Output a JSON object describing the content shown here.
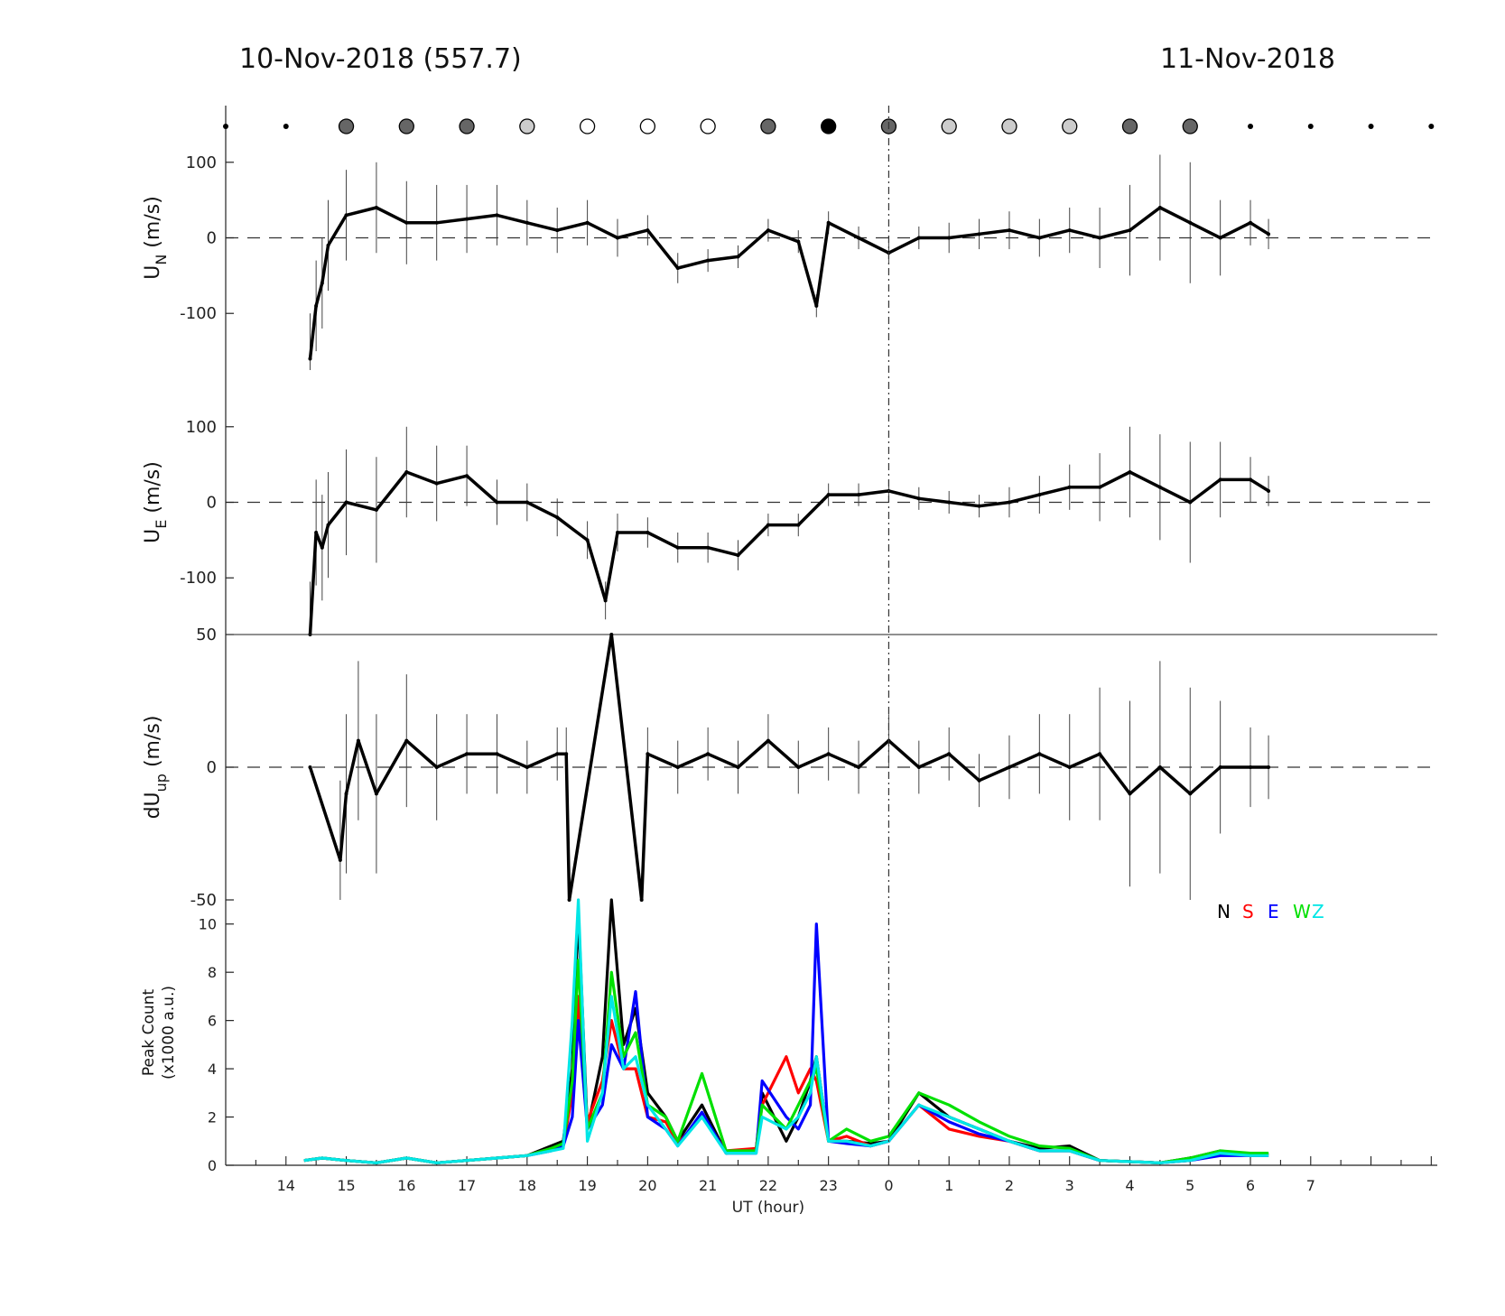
{
  "header": {
    "title_left": "10-Nov-2018 (557.7)",
    "title_right": "11-Nov-2018"
  },
  "chart_data": [
    {
      "type": "line",
      "panel": "meridional wind",
      "ylabel_main": "U",
      "ylabel_sub": "N",
      "ylabel_unit": "(m/s)",
      "yticks": [
        100,
        0,
        -100
      ],
      "ylim": [
        -175,
        175
      ],
      "xlim_hours_since_14UT": [
        -1,
        19.1
      ],
      "description_of_series": "10-min wind estimates with error bars",
      "x": [
        0.4,
        0.5,
        0.6,
        0.7,
        1.0,
        1.5,
        2.0,
        2.5,
        3.0,
        3.5,
        4.0,
        4.5,
        5.0,
        5.5,
        6.0,
        6.5,
        7.0,
        7.5,
        8.0,
        8.5,
        8.8,
        9.0,
        9.5,
        10.0,
        10.5,
        11.0,
        11.5,
        12.0,
        12.5,
        13.0,
        13.5,
        14.0,
        14.5,
        15.0,
        15.5,
        16.0,
        16.3
      ],
      "values": [
        -160,
        -90,
        -60,
        -10,
        30,
        40,
        20,
        20,
        25,
        30,
        20,
        10,
        20,
        0,
        10,
        -40,
        -30,
        -25,
        10,
        -5,
        -90,
        20,
        0,
        -20,
        0,
        0,
        5,
        10,
        0,
        10,
        0,
        10,
        40,
        20,
        0,
        20,
        5
      ],
      "errors": [
        60,
        60,
        60,
        60,
        60,
        60,
        55,
        50,
        45,
        40,
        30,
        30,
        30,
        25,
        20,
        20,
        15,
        15,
        15,
        15,
        15,
        15,
        15,
        15,
        15,
        20,
        20,
        25,
        25,
        30,
        40,
        60,
        70,
        80,
        50,
        30,
        20
      ]
    },
    {
      "type": "line",
      "panel": "zonal wind",
      "ylabel_main": "U",
      "ylabel_sub": "E",
      "ylabel_unit": "(m/s)",
      "yticks": [
        100,
        0,
        -100
      ],
      "ylim": [
        -175,
        175
      ],
      "x": [
        0.4,
        0.5,
        0.6,
        0.7,
        1.0,
        1.5,
        2.0,
        2.5,
        3.0,
        3.5,
        4.0,
        4.5,
        5.0,
        5.3,
        5.5,
        6.0,
        6.5,
        7.0,
        7.5,
        8.0,
        8.5,
        9.0,
        9.5,
        10.0,
        10.5,
        11.0,
        11.5,
        12.0,
        12.5,
        13.0,
        13.5,
        14.0,
        14.5,
        15.0,
        15.5,
        16.0,
        16.3
      ],
      "values": [
        -175,
        -40,
        -60,
        -30,
        0,
        -10,
        40,
        25,
        35,
        0,
        0,
        -20,
        -50,
        -130,
        -40,
        -40,
        -60,
        -60,
        -70,
        -30,
        -30,
        10,
        10,
        15,
        5,
        0,
        -5,
        0,
        10,
        20,
        20,
        40,
        20,
        0,
        30,
        30,
        15
      ],
      "errors": [
        70,
        70,
        70,
        70,
        70,
        70,
        60,
        50,
        40,
        30,
        25,
        25,
        25,
        25,
        25,
        20,
        20,
        20,
        20,
        15,
        15,
        15,
        15,
        15,
        15,
        15,
        15,
        20,
        25,
        30,
        45,
        60,
        70,
        80,
        50,
        30,
        20
      ]
    },
    {
      "type": "line",
      "panel": "vertical wind",
      "ylabel_main": "dU",
      "ylabel_sub": "up",
      "ylabel_unit": "(m/s)",
      "yticks": [
        50,
        0,
        -50
      ],
      "ylim": [
        -50,
        50
      ],
      "x": [
        0.4,
        0.9,
        1.0,
        1.2,
        1.5,
        2.0,
        2.5,
        3.0,
        3.5,
        4.0,
        4.5,
        4.65,
        4.7,
        5.4,
        5.9,
        6.0,
        6.5,
        7.0,
        7.5,
        8.0,
        8.5,
        9.0,
        9.5,
        10.0,
        10.5,
        11.0,
        11.5,
        12.0,
        12.5,
        13.0,
        13.5,
        14.0,
        14.5,
        15.0,
        15.5,
        16.0,
        16.3
      ],
      "values": [
        0,
        -35,
        -10,
        10,
        -10,
        10,
        0,
        5,
        5,
        0,
        5,
        5,
        -50,
        50,
        -50,
        5,
        0,
        5,
        0,
        10,
        0,
        5,
        0,
        10,
        0,
        5,
        -5,
        0,
        5,
        0,
        5,
        -10,
        0,
        -10,
        0,
        0,
        0
      ],
      "errors": [
        0,
        30,
        30,
        30,
        30,
        25,
        20,
        15,
        15,
        10,
        10,
        10,
        0,
        0,
        0,
        10,
        10,
        10,
        10,
        10,
        10,
        10,
        10,
        10,
        10,
        10,
        10,
        12,
        15,
        20,
        25,
        35,
        40,
        40,
        25,
        15,
        12
      ]
    },
    {
      "type": "line",
      "panel": "peak count",
      "ylabel_line1": "Peak Count",
      "ylabel_line2": "(x1000 a.u.)",
      "yticks": [
        10,
        8,
        6,
        4,
        2,
        0
      ],
      "ylim": [
        0,
        11
      ],
      "xlabel": "UT (hour)",
      "xtick_labels": [
        "14",
        "15",
        "16",
        "17",
        "18",
        "19",
        "20",
        "21",
        "22",
        "23",
        "0",
        "1",
        "2",
        "3",
        "4",
        "5",
        "6",
        "7"
      ],
      "legend": [
        "N",
        "S",
        "E",
        "W",
        "Z"
      ],
      "legend_colors": [
        "#000000",
        "#ff0000",
        "#0000ff",
        "#00e000",
        "#00e6e6"
      ],
      "x": [
        0.3,
        0.6,
        1.0,
        1.5,
        2.0,
        2.5,
        3.0,
        3.5,
        4.0,
        4.4,
        4.6,
        4.75,
        4.85,
        5.0,
        5.25,
        5.4,
        5.6,
        5.8,
        6.0,
        6.3,
        6.5,
        6.9,
        7.3,
        7.8,
        7.9,
        8.3,
        8.5,
        8.7,
        8.8,
        9.0,
        9.3,
        9.7,
        10.0,
        10.5,
        11.0,
        11.5,
        12.0,
        12.5,
        13.0,
        13.5,
        14.5,
        15.0,
        15.5,
        16.0,
        16.3
      ],
      "series": [
        {
          "name": "N",
          "values": [
            0.2,
            0.3,
            0.2,
            0.1,
            0.3,
            0.1,
            0.2,
            0.3,
            0.4,
            0.8,
            1.0,
            4.0,
            10.5,
            1.5,
            4.5,
            11.0,
            5.0,
            6.5,
            3.0,
            2.0,
            1.0,
            2.5,
            0.5,
            0.6,
            3.0,
            1.0,
            2.0,
            3.5,
            4.5,
            1.0,
            1.0,
            0.9,
            1.0,
            3.0,
            2.0,
            1.5,
            1.0,
            0.7,
            0.8,
            0.2,
            0.1,
            0.3,
            0.6,
            0.4,
            0.5
          ]
        },
        {
          "name": "S",
          "values": [
            0.2,
            0.3,
            0.2,
            0.1,
            0.3,
            0.1,
            0.2,
            0.3,
            0.4,
            0.7,
            0.8,
            3.0,
            7.0,
            1.8,
            3.5,
            6.0,
            4.0,
            4.0,
            2.0,
            1.8,
            0.9,
            2.0,
            0.6,
            0.7,
            2.5,
            4.5,
            3.0,
            4.0,
            3.5,
            1.0,
            1.2,
            0.8,
            1.0,
            2.5,
            1.5,
            1.2,
            1.0,
            0.6,
            0.6,
            0.2,
            0.1,
            0.2,
            0.5,
            0.4,
            0.4
          ]
        },
        {
          "name": "E",
          "values": [
            0.2,
            0.3,
            0.2,
            0.1,
            0.3,
            0.1,
            0.2,
            0.3,
            0.4,
            0.6,
            0.8,
            2.0,
            6.0,
            1.5,
            2.5,
            5.0,
            4.0,
            7.2,
            2.0,
            1.5,
            0.8,
            2.2,
            0.5,
            0.5,
            3.5,
            2.0,
            1.5,
            2.5,
            10.0,
            1.0,
            0.9,
            0.8,
            1.0,
            2.5,
            1.8,
            1.3,
            1.0,
            0.6,
            0.6,
            0.2,
            0.1,
            0.2,
            0.4,
            0.4,
            0.4
          ]
        },
        {
          "name": "W",
          "values": [
            0.2,
            0.3,
            0.2,
            0.1,
            0.3,
            0.1,
            0.2,
            0.3,
            0.4,
            0.7,
            0.9,
            3.5,
            8.5,
            1.5,
            3.0,
            8.0,
            4.5,
            5.5,
            2.5,
            2.0,
            1.0,
            3.8,
            0.6,
            0.6,
            2.5,
            1.5,
            2.5,
            3.5,
            4.0,
            1.0,
            1.5,
            1.0,
            1.2,
            3.0,
            2.5,
            1.8,
            1.2,
            0.8,
            0.7,
            0.2,
            0.1,
            0.3,
            0.6,
            0.5,
            0.5
          ]
        },
        {
          "name": "Z",
          "values": [
            0.2,
            0.3,
            0.2,
            0.1,
            0.3,
            0.1,
            0.2,
            0.3,
            0.4,
            0.6,
            0.7,
            6.0,
            11.0,
            1.0,
            3.0,
            7.0,
            4.0,
            4.5,
            2.5,
            1.5,
            0.8,
            2.0,
            0.5,
            0.5,
            2.0,
            1.5,
            2.0,
            3.0,
            4.5,
            1.0,
            1.0,
            0.8,
            1.0,
            2.5,
            2.0,
            1.5,
            1.0,
            0.6,
            0.6,
            0.2,
            0.1,
            0.2,
            0.5,
            0.4,
            0.4
          ]
        }
      ]
    }
  ],
  "cloud_markers": {
    "x": [
      -1,
      0,
      1,
      2,
      3,
      4,
      5,
      6,
      7,
      8,
      9,
      10,
      11,
      12,
      13,
      14,
      15,
      16,
      17,
      18,
      19
    ],
    "fill_levels": [
      "dot",
      "dot",
      "#666666",
      "#666666",
      "#666666",
      "#cccccc",
      "#ffffff",
      "#ffffff",
      "#ffffff",
      "#666666",
      "#000000",
      "#666666",
      "#cccccc",
      "#cccccc",
      "#cccccc",
      "#666666",
      "#666666",
      "dot",
      "dot",
      "dot",
      "dot"
    ]
  },
  "midnight_line_x": 10
}
